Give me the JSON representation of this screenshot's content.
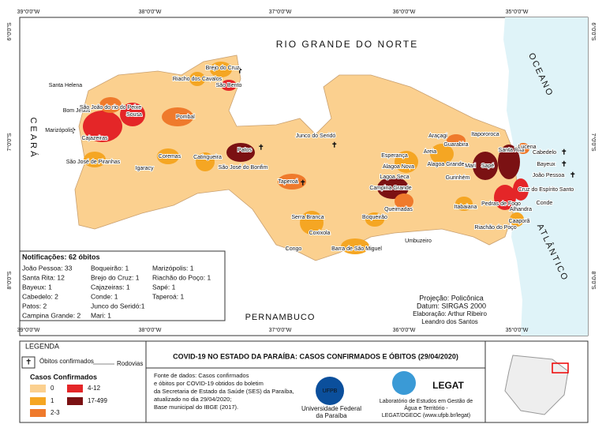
{
  "coords": {
    "top": [
      "39°0'0\"W",
      "38°0'0\"W",
      "37°0'0\"W",
      "36°0'0\"W",
      "35°0'0\"W"
    ],
    "side": [
      "6°0'0\"S",
      "7°0'0\"S",
      "8°0'0\"S"
    ]
  },
  "regions": {
    "north": "RIO GRANDE DO NORTE",
    "west": "CEARÁ",
    "south": "PERNAMBUCO",
    "ocean1": "OCEANO",
    "ocean2": "ATLÂNTICO"
  },
  "municipalities": [
    "Brejo do Cruz",
    "Riacho dos Cavalos",
    "São Bento",
    "Santa Helena",
    "Bom Jesus",
    "São João do rio do Peixe",
    "Sousa",
    "Marizópolis",
    "Cajazeiras",
    "Pombal",
    "São José de Piranhas",
    "Igaracy",
    "Coremas",
    "Catingueira",
    "Patos",
    "São José do Bonfim",
    "Junco do Seridó",
    "Taperoá",
    "Serra Branca",
    "Coxixola",
    "Congo",
    "Barra de São Miguel",
    "Boqueirão",
    "Queimadas",
    "Umbuzeiro",
    "Campina Grande",
    "Esperança",
    "Alagoa Nova",
    "Lagoa Seca",
    "Areia",
    "Alagoa Grande",
    "Araçagi",
    "Guarabira",
    "Itapororoca",
    "Mari",
    "Sapé",
    "Gurinhém",
    "Itabaiana",
    "Santa Rita",
    "Lucena",
    "Cabedelo",
    "Bayeux",
    "João Pessoa",
    "Cruz do Espírito Santo",
    "Conde",
    "Pedras de Fogo",
    "Alhandra",
    "Caaporã",
    "Riachão do Poço"
  ],
  "notifications": {
    "title": "Notificações: 62 óbitos",
    "items": [
      "João Pessoa: 33",
      "Santa Rita: 12",
      "Bayeux: 1",
      "Cabedelo: 2",
      "Patos: 2",
      "Campina Grande: 2",
      "Boqueirão: 1",
      "Brejo do Cruz: 1",
      "Cajazeiras: 1",
      "Conde: 1",
      "Junco do Seridó:1",
      "Mari: 1",
      "Marizópolis: 1",
      "Riachão do Poço: 1",
      "Sapé: 1",
      "Taperoá: 1"
    ]
  },
  "info": [
    "Projeção: Policônica",
    "Datum: SIRGAS 2000",
    "Elaboração: Arthur Ribeiro",
    "Leandro dos Santos"
  ],
  "legend": {
    "title": "LEGENDA",
    "deaths": "Óbitos confirmados",
    "roads": "Rodovias",
    "cases_title": "Casos Confirmados",
    "classes": [
      "0",
      "1",
      "2-3",
      "4-12",
      "17-499"
    ]
  },
  "footer": {
    "title": "COVID-19 NO ESTADO DA PARAÍBA: CASOS CONFIRMADOS E ÓBITOS (29/04/2020)",
    "source": [
      "Fonte de dados: Casos confirmados",
      "e óbitos por COVID-19 obtidos do boletim",
      "da Secretaria de Estado da Saúde (SES) da Paraíba,",
      "atualizado no dia 29/04/2020;",
      "Base municipal do IBGE (2017)."
    ],
    "ufpb": "UFPB",
    "ufpb_name": [
      "Universidade Federal",
      "da Paraíba"
    ],
    "legat": "LEGAT",
    "legat_name": [
      "Laboratório de Estudos em Gestão de",
      "Água e Território -",
      "LEGAT/DGEOC (www.ufpb.br/legat)"
    ]
  }
}
